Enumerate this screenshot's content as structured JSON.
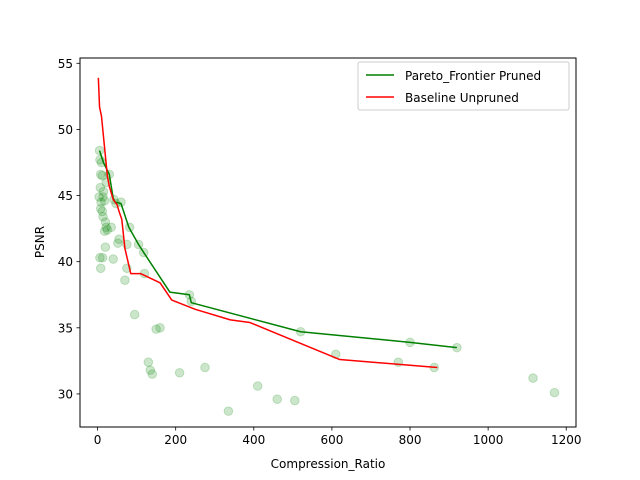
{
  "chart_data": {
    "type": "scatter",
    "xlabel": "Compression_Ratio",
    "ylabel": "PSNR",
    "xlim": [
      -45,
      1225
    ],
    "ylim": [
      27.5,
      55.4
    ],
    "xticks": [
      0,
      200,
      400,
      600,
      800,
      1000,
      1200
    ],
    "yticks": [
      30,
      35,
      40,
      45,
      50,
      55
    ],
    "legend_position": "top-right",
    "colors": {
      "scatter": "#008000",
      "pareto": "#008000",
      "baseline": "#ff0000"
    },
    "scatter_points": [
      [
        5,
        48.4
      ],
      [
        6,
        47.7
      ],
      [
        10,
        47.5
      ],
      [
        8,
        46.6
      ],
      [
        12,
        46.5
      ],
      [
        22,
        46.0
      ],
      [
        30,
        46.6
      ],
      [
        7,
        45.6
      ],
      [
        15,
        45.3
      ],
      [
        4,
        44.9
      ],
      [
        9,
        44.5
      ],
      [
        14,
        44.9
      ],
      [
        18,
        44.6
      ],
      [
        42,
        44.7
      ],
      [
        47,
        44.4
      ],
      [
        60,
        44.5
      ],
      [
        8,
        44.0
      ],
      [
        12,
        43.8
      ],
      [
        14,
        43.4
      ],
      [
        20,
        43.0
      ],
      [
        22,
        42.6
      ],
      [
        18,
        42.3
      ],
      [
        25,
        42.4
      ],
      [
        35,
        42.6
      ],
      [
        82,
        42.6
      ],
      [
        55,
        41.7
      ],
      [
        52,
        41.4
      ],
      [
        20,
        41.1
      ],
      [
        75,
        41.3
      ],
      [
        105,
        41.3
      ],
      [
        118,
        40.7
      ],
      [
        6,
        40.3
      ],
      [
        13,
        40.3
      ],
      [
        40,
        40.2
      ],
      [
        8,
        39.5
      ],
      [
        75,
        39.5
      ],
      [
        120,
        39.1
      ],
      [
        70,
        38.6
      ],
      [
        235,
        37.5
      ],
      [
        240,
        37.0
      ],
      [
        95,
        36.0
      ],
      [
        150,
        34.9
      ],
      [
        160,
        35.0
      ],
      [
        520,
        34.7
      ],
      [
        610,
        33.0
      ],
      [
        800,
        33.9
      ],
      [
        920,
        33.5
      ],
      [
        770,
        32.4
      ],
      [
        862,
        32.0
      ],
      [
        130,
        32.4
      ],
      [
        135,
        31.8
      ],
      [
        140,
        31.5
      ],
      [
        210,
        31.6
      ],
      [
        275,
        32.0
      ],
      [
        1115,
        31.2
      ],
      [
        1170,
        30.1
      ],
      [
        410,
        30.6
      ],
      [
        460,
        29.6
      ],
      [
        505,
        29.5
      ],
      [
        335,
        28.7
      ]
    ],
    "series": [
      {
        "name": "Pareto_Frontier Pruned",
        "x": [
          5,
          15,
          30,
          40,
          45,
          60,
          80,
          105,
          118,
          185,
          235,
          240,
          520,
          800,
          920
        ],
        "y": [
          48.4,
          47.5,
          46.6,
          44.8,
          44.5,
          44.4,
          42.6,
          41.3,
          40.7,
          37.7,
          37.5,
          36.9,
          34.7,
          33.9,
          33.5
        ]
      },
      {
        "name": "Baseline Unpruned",
        "x": [
          2,
          5,
          10,
          15,
          20,
          25,
          30,
          40,
          50,
          55,
          62,
          70,
          85,
          110,
          160,
          190,
          250,
          340,
          390,
          620,
          870
        ],
        "y": [
          53.9,
          51.7,
          51.0,
          49.5,
          48.0,
          46.5,
          45.7,
          44.7,
          44.3,
          43.8,
          43.2,
          41.0,
          39.1,
          39.1,
          38.4,
          37.1,
          36.4,
          35.6,
          35.4,
          32.6,
          32.0
        ]
      }
    ]
  }
}
